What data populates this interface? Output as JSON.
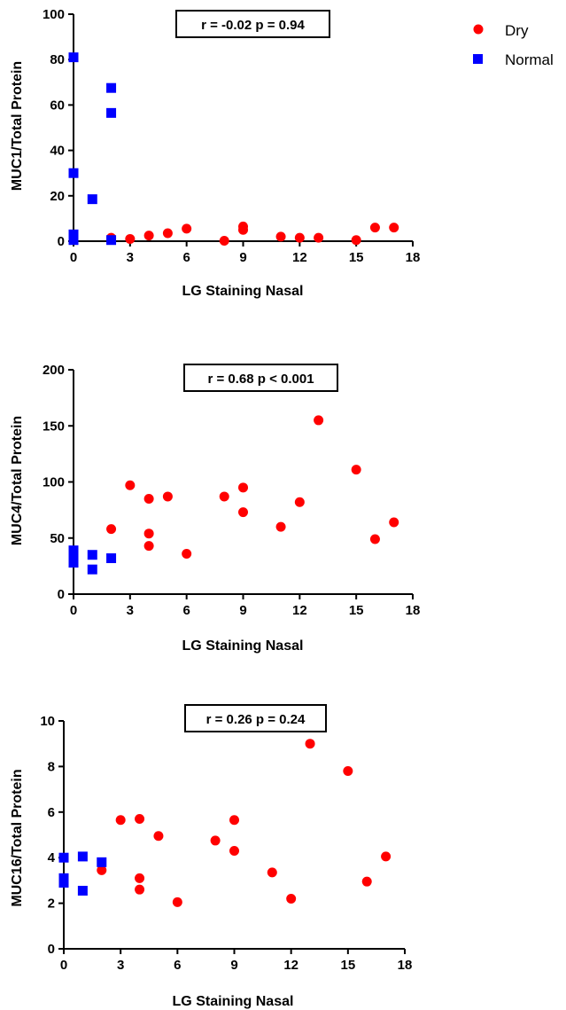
{
  "legend": {
    "placement": "top-right",
    "entries": [
      {
        "label": "Dry",
        "color": "#ff0000",
        "marker": "circle"
      },
      {
        "label": "Normal",
        "color": "#0000ff",
        "marker": "square"
      }
    ]
  },
  "chart_data": [
    {
      "type": "scatter",
      "title": "",
      "stat_annotation": "r = -0.02 p = 0.94",
      "xlabel": "LG Staining Nasal",
      "ylabel": "MUC1/Total Protein",
      "xlim": [
        0,
        18
      ],
      "ylim": [
        0,
        100
      ],
      "x_ticks": [
        "0",
        "3",
        "6",
        "9",
        "12",
        "15",
        "18"
      ],
      "y_ticks": [
        "0",
        "20",
        "40",
        "60",
        "80",
        "100"
      ],
      "grid": false,
      "series": [
        {
          "name": "Dry",
          "color": "#ff0000",
          "marker": "circle",
          "points": [
            [
              2,
              1.5
            ],
            [
              3,
              1
            ],
            [
              4,
              2.5
            ],
            [
              5,
              3.5
            ],
            [
              6,
              5.5
            ],
            [
              8,
              0.2
            ],
            [
              9,
              6.5
            ],
            [
              9,
              5
            ],
            [
              11,
              2
            ],
            [
              12,
              1.5
            ],
            [
              13,
              1.5
            ],
            [
              15,
              0.5
            ],
            [
              16,
              6
            ],
            [
              17,
              6
            ]
          ]
        },
        {
          "name": "Normal",
          "color": "#0000ff",
          "marker": "square",
          "points": [
            [
              0,
              81
            ],
            [
              0,
              30
            ],
            [
              0,
              3
            ],
            [
              0,
              1.5
            ],
            [
              0,
              0.5
            ],
            [
              1,
              18.5
            ],
            [
              2,
              67.5
            ],
            [
              2,
              56.5
            ],
            [
              2,
              0.5
            ]
          ]
        }
      ]
    },
    {
      "type": "scatter",
      "title": "",
      "stat_annotation": "r = 0.68 p < 0.001",
      "xlabel": "LG Staining Nasal",
      "ylabel": "MUC4/Total Protein",
      "xlim": [
        0,
        18
      ],
      "ylim": [
        0,
        200
      ],
      "x_ticks": [
        "0",
        "3",
        "6",
        "9",
        "12",
        "15",
        "18"
      ],
      "y_ticks": [
        "0",
        "50",
        "100",
        "150",
        "200"
      ],
      "grid": false,
      "series": [
        {
          "name": "Dry",
          "color": "#ff0000",
          "marker": "circle",
          "points": [
            [
              2,
              58
            ],
            [
              3,
              97
            ],
            [
              4,
              85
            ],
            [
              4,
              54
            ],
            [
              4,
              43
            ],
            [
              5,
              87
            ],
            [
              6,
              36
            ],
            [
              8,
              87
            ],
            [
              9,
              95
            ],
            [
              9,
              73
            ],
            [
              11,
              60
            ],
            [
              12,
              82
            ],
            [
              13,
              155
            ],
            [
              15,
              111
            ],
            [
              16,
              49
            ],
            [
              17,
              64
            ]
          ]
        },
        {
          "name": "Normal",
          "color": "#0000ff",
          "marker": "square",
          "points": [
            [
              0,
              39
            ],
            [
              0,
              35
            ],
            [
              0,
              31
            ],
            [
              0,
              28
            ],
            [
              1,
              35
            ],
            [
              1,
              22
            ],
            [
              2,
              32
            ]
          ]
        }
      ]
    },
    {
      "type": "scatter",
      "title": "",
      "stat_annotation": "r = 0.26 p = 0.24",
      "xlabel": "LG Staining Nasal",
      "ylabel": "MUC16/Total Protein",
      "xlim": [
        0,
        18
      ],
      "ylim": [
        0,
        10
      ],
      "x_ticks": [
        "0",
        "3",
        "6",
        "9",
        "12",
        "15",
        "18"
      ],
      "y_ticks": [
        "0",
        "2",
        "4",
        "6",
        "8",
        "10"
      ],
      "grid": false,
      "series": [
        {
          "name": "Dry",
          "color": "#ff0000",
          "marker": "circle",
          "points": [
            [
              2,
              3.45
            ],
            [
              3,
              5.65
            ],
            [
              4,
              5.7
            ],
            [
              4,
              3.1
            ],
            [
              4,
              2.6
            ],
            [
              5,
              4.95
            ],
            [
              6,
              2.05
            ],
            [
              8,
              4.75
            ],
            [
              9,
              5.65
            ],
            [
              9,
              4.3
            ],
            [
              11,
              3.35
            ],
            [
              12,
              2.2
            ],
            [
              13,
              9.0
            ],
            [
              15,
              7.8
            ],
            [
              16,
              2.95
            ],
            [
              17,
              4.05
            ]
          ]
        },
        {
          "name": "Normal",
          "color": "#0000ff",
          "marker": "square",
          "points": [
            [
              0,
              4.0
            ],
            [
              0,
              3.1
            ],
            [
              0,
              2.9
            ],
            [
              1,
              4.05
            ],
            [
              1,
              2.55
            ],
            [
              2,
              3.8
            ]
          ]
        }
      ]
    }
  ]
}
